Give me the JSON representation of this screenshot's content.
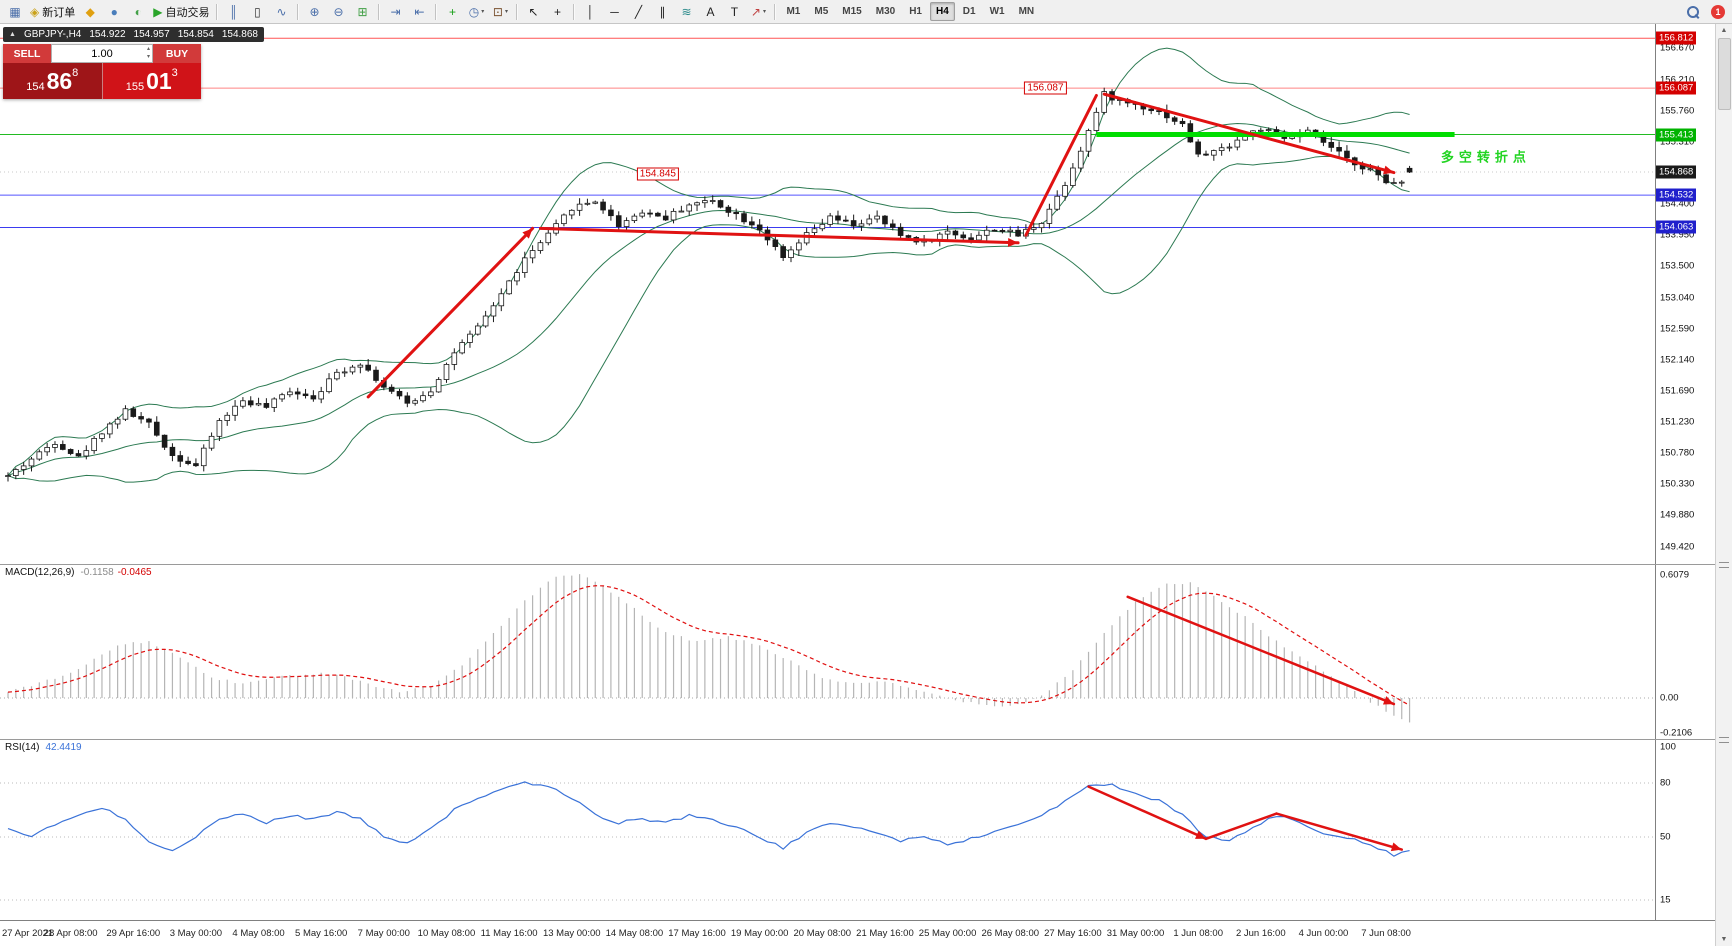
{
  "toolbar": {
    "notification_count": "1",
    "groups": [
      {
        "items": [
          {
            "name": "new-chart-button",
            "glyph": "▦",
            "color": "#4a6ea9"
          },
          {
            "name": "new-order-button",
            "glyph": "◈",
            "color": "#caa21a",
            "label": "新订单"
          },
          {
            "name": "charts-button",
            "glyph": "◆",
            "color": "#e0a010"
          },
          {
            "name": "market-watch-button",
            "glyph": "●",
            "color": "#4a7ebb"
          },
          {
            "name": "navigator-button",
            "glyph": "◐",
            "color": "#43a047"
          },
          {
            "name": "autotrading-button",
            "glyph": "▶",
            "color": "#2aa52a",
            "label": "自动交易"
          }
        ]
      },
      {
        "items": [
          {
            "name": "bar-chart-button",
            "glyph": "║",
            "color": "#4a6ea9"
          },
          {
            "name": "candlestick-chart-button",
            "glyph": "▯",
            "color": "#333333"
          },
          {
            "name": "line-chart-button",
            "glyph": "∿",
            "color": "#4a6ea9"
          }
        ]
      },
      {
        "items": [
          {
            "name": "zoom-in-button",
            "glyph": "⊕",
            "color": "#4a6ea9"
          },
          {
            "name": "zoom-out-button",
            "glyph": "⊖",
            "color": "#4a6ea9"
          },
          {
            "name": "tile-windows-button",
            "glyph": "⊞",
            "color": "#43a047"
          }
        ]
      },
      {
        "items": [
          {
            "name": "auto-scroll-button",
            "glyph": "⇥",
            "color": "#4a6ea9"
          },
          {
            "name": "chart-shift-button",
            "glyph": "⇤",
            "color": "#4a6ea9"
          }
        ]
      },
      {
        "items": [
          {
            "name": "add-indicator-button",
            "glyph": "+",
            "color": "#18a018"
          },
          {
            "name": "periods-button",
            "glyph": "◷",
            "color": "#4a6ea9",
            "dropdown": true
          },
          {
            "name": "template-button",
            "glyph": "⊡",
            "color": "#7a5230",
            "dropdown": true
          }
        ]
      },
      {
        "items": [
          {
            "name": "cursor-button",
            "glyph": "↖",
            "color": "#222222"
          },
          {
            "name": "crosshair-button",
            "glyph": "+",
            "color": "#222222"
          }
        ]
      },
      {
        "items": [
          {
            "name": "vertical-line-button",
            "glyph": "│",
            "color": "#222222"
          },
          {
            "name": "horizontal-line-button",
            "glyph": "─",
            "color": "#222222"
          },
          {
            "name": "trendline-button",
            "glyph": "╱",
            "color": "#222222"
          },
          {
            "name": "channel-button",
            "glyph": "∥",
            "color": "#222222"
          },
          {
            "name": "fibonacci-button",
            "glyph": "≋",
            "color": "#2a8a8a"
          },
          {
            "name": "text-button",
            "glyph": "A",
            "color": "#222222"
          },
          {
            "name": "label-button",
            "glyph": "T",
            "color": "#222222"
          },
          {
            "name": "arrows-button",
            "glyph": "↗",
            "color": "#c04040",
            "dropdown": true
          }
        ]
      }
    ],
    "timeframes": {
      "items": [
        "M1",
        "M5",
        "M15",
        "M30",
        "H1",
        "H4",
        "D1",
        "W1",
        "MN"
      ],
      "active": "H4"
    }
  },
  "quote_bar": {
    "symbol_period": "GBPJPY-,H4",
    "open": "154.922",
    "high": "154.957",
    "low": "154.854",
    "close": "154.868"
  },
  "trade_panel": {
    "sell_label": "SELL",
    "buy_label": "BUY",
    "volume_value": "1.00",
    "sell_price_prefix": "154",
    "sell_price_big": "86",
    "sell_price_sup": "8",
    "buy_price_prefix": "155",
    "buy_price_big": "01",
    "buy_price_sup": "3"
  },
  "macd_header": {
    "name": "MACD(12,26,9)",
    "value": "-0.1158",
    "signal": "-0.0465"
  },
  "rsi_header": {
    "name": "RSI(14)",
    "value": "42.4419"
  },
  "time_axis": {
    "step": 8,
    "labels": [
      "27 Apr 2021",
      "28 Apr 08:00",
      "29 Apr 16:00",
      "3 May 00:00",
      "4 May 08:00",
      "5 May 16:00",
      "7 May 00:00",
      "10 May 08:00",
      "11 May 16:00",
      "13 May 00:00",
      "14 May 08:00",
      "17 May 16:00",
      "19 May 00:00",
      "20 May 08:00",
      "21 May 16:00",
      "25 May 00:00",
      "26 May 08:00",
      "27 May 16:00",
      "31 May 00:00",
      "1 Jun 08:00",
      "2 Jun 16:00",
      "4 Jun 00:00",
      "7 Jun 08:00"
    ]
  },
  "chart_data": [
    {
      "type": "candlestick",
      "symbol": "GBPJPY-,H4",
      "n_candles": 180,
      "candle_up": "#ffffff",
      "candle_down": "#1a1a1a",
      "arrow_color": "#e01212",
      "last_ohlc": {
        "open": 154.922,
        "high": 154.957,
        "low": 154.854,
        "close": 154.868
      },
      "y_axis": {
        "ylim": [
          149.42,
          156.88
        ],
        "ticks": [
          "156.670",
          "156.210",
          "155.760",
          "155.310",
          "154.860",
          "154.400",
          "153.950",
          "153.500",
          "153.040",
          "152.590",
          "152.140",
          "151.690",
          "151.230",
          "150.780",
          "150.330",
          "149.880",
          "149.420"
        ]
      },
      "price_keypoints": [
        [
          0,
          150.45
        ],
        [
          3,
          150.7
        ],
        [
          6,
          150.95
        ],
        [
          9,
          150.72
        ],
        [
          12,
          151.1
        ],
        [
          15,
          151.4
        ],
        [
          18,
          151.2
        ],
        [
          21,
          150.75
        ],
        [
          24,
          150.6
        ],
        [
          27,
          151.25
        ],
        [
          30,
          151.55
        ],
        [
          33,
          151.45
        ],
        [
          36,
          151.7
        ],
        [
          39,
          151.6
        ],
        [
          42,
          151.95
        ],
        [
          45,
          152.1
        ],
        [
          48,
          151.75
        ],
        [
          51,
          151.5
        ],
        [
          54,
          151.7
        ],
        [
          57,
          152.25
        ],
        [
          60,
          152.6
        ],
        [
          63,
          153.1
        ],
        [
          66,
          153.6
        ],
        [
          69,
          153.95
        ],
        [
          72,
          154.35
        ],
        [
          75,
          154.45
        ],
        [
          78,
          154.1
        ],
        [
          81,
          154.3
        ],
        [
          84,
          154.2
        ],
        [
          87,
          154.4
        ],
        [
          90,
          154.45
        ],
        [
          93,
          154.25
        ],
        [
          96,
          154.05
        ],
        [
          99,
          153.6
        ],
        [
          102,
          153.95
        ],
        [
          105,
          154.2
        ],
        [
          108,
          154.1
        ],
        [
          111,
          154.2
        ],
        [
          114,
          153.95
        ],
        [
          117,
          153.85
        ],
        [
          120,
          154.0
        ],
        [
          123,
          153.9
        ],
        [
          126,
          154.05
        ],
        [
          129,
          153.95
        ],
        [
          132,
          154.15
        ],
        [
          135,
          154.7
        ],
        [
          137,
          155.2
        ],
        [
          140,
          156.0
        ],
        [
          142,
          155.9
        ],
        [
          144,
          155.85
        ],
        [
          147,
          155.75
        ],
        [
          150,
          155.55
        ],
        [
          152,
          155.1
        ],
        [
          155,
          155.2
        ],
        [
          158,
          155.4
        ],
        [
          160,
          155.5
        ],
        [
          163,
          155.35
        ],
        [
          166,
          155.45
        ],
        [
          168,
          155.3
        ],
        [
          171,
          155.05
        ],
        [
          174,
          154.9
        ],
        [
          176,
          154.7
        ],
        [
          178,
          154.75
        ],
        [
          179,
          154.868
        ]
      ],
      "bollinger": {
        "period": 20,
        "deviation": 2,
        "color": "#2c7a52"
      },
      "levels": [
        {
          "price": 156.812,
          "color": "#ff5555",
          "style": "solid",
          "width": 1,
          "badge": "156.812",
          "badge_color": "#d40000"
        },
        {
          "price": 156.087,
          "color": "#ff8585",
          "style": "solid",
          "width": 1,
          "badge": "156.087",
          "badge_color": "#d40000"
        },
        {
          "price": 155.413,
          "color": "#22bb22",
          "style": "solid",
          "width": 1,
          "badge": "155.413",
          "badge_color": "#00b300"
        },
        {
          "price": 154.868,
          "color": "#c8c8c8",
          "style": "dot",
          "width": 1,
          "badge": "154.868",
          "badge_color": "#1a1a1a"
        },
        {
          "price": 154.532,
          "color": "#5555ff",
          "style": "solid",
          "width": 1,
          "badge": "154.532",
          "badge_color": "#2020cc"
        },
        {
          "price": 154.063,
          "color": "#3b3bf0",
          "style": "solid",
          "width": 1,
          "badge": "154.063",
          "badge_color": "#2020cc"
        }
      ],
      "green_segment": {
        "price": 155.413,
        "from_index": 139,
        "to_x_offset": 45,
        "color": "#00dd00",
        "width": 5
      },
      "arrows": [
        {
          "from": [
            46,
            151.6
          ],
          "to": [
            67,
            154.05
          ],
          "head": true
        },
        {
          "from": [
            68,
            154.05
          ],
          "to": [
            129,
            153.84
          ],
          "head": true
        },
        {
          "from": [
            130,
            153.95
          ],
          "to": [
            139,
            155.98
          ],
          "head": false
        },
        {
          "from": [
            140,
            156.0
          ],
          "to": [
            177,
            154.86
          ],
          "head": true
        }
      ],
      "callouts": [
        {
          "text": "156.087",
          "index": 132.5,
          "price": 156.087
        },
        {
          "text": "154.845",
          "index": 83,
          "price": 154.845
        }
      ],
      "annotations": [
        {
          "text": "多空转折点",
          "index": 183,
          "price": 155.1,
          "color": "#21d421"
        }
      ]
    },
    {
      "type": "bar",
      "title": "MACD(12,26,9)",
      "current_value": -0.1158,
      "current_signal": -0.0465,
      "histogram_color": "#b5b5b5",
      "signal_color": "#e01010",
      "level_labels": [
        "0.6079",
        "0.00",
        "-0.2106"
      ],
      "level_values": [
        0.6079,
        0,
        -0.2106
      ],
      "values_keypoints": [
        [
          0,
          0.03
        ],
        [
          8,
          0.12
        ],
        [
          14,
          0.26
        ],
        [
          18,
          0.28
        ],
        [
          22,
          0.2
        ],
        [
          26,
          0.1
        ],
        [
          30,
          0.07
        ],
        [
          34,
          0.1
        ],
        [
          38,
          0.12
        ],
        [
          42,
          0.12
        ],
        [
          46,
          0.07
        ],
        [
          50,
          0.03
        ],
        [
          54,
          0.06
        ],
        [
          58,
          0.16
        ],
        [
          62,
          0.32
        ],
        [
          66,
          0.48
        ],
        [
          70,
          0.6
        ],
        [
          73,
          0.61
        ],
        [
          76,
          0.55
        ],
        [
          80,
          0.44
        ],
        [
          84,
          0.32
        ],
        [
          88,
          0.28
        ],
        [
          92,
          0.3
        ],
        [
          96,
          0.26
        ],
        [
          100,
          0.18
        ],
        [
          104,
          0.1
        ],
        [
          108,
          0.07
        ],
        [
          112,
          0.08
        ],
        [
          116,
          0.04
        ],
        [
          120,
          0.0
        ],
        [
          124,
          -0.03
        ],
        [
          128,
          -0.04
        ],
        [
          132,
          0.01
        ],
        [
          136,
          0.14
        ],
        [
          140,
          0.32
        ],
        [
          144,
          0.48
        ],
        [
          148,
          0.56
        ],
        [
          151,
          0.57
        ],
        [
          154,
          0.5
        ],
        [
          158,
          0.4
        ],
        [
          162,
          0.28
        ],
        [
          166,
          0.18
        ],
        [
          170,
          0.08
        ],
        [
          174,
          -0.02
        ],
        [
          177,
          -0.09
        ],
        [
          179,
          -0.12
        ]
      ],
      "arrow": {
        "from": [
          143,
          0.5
        ],
        "to": [
          177,
          -0.03
        ],
        "head": true
      }
    },
    {
      "type": "line",
      "title": "RSI(14)",
      "current_value": 42.4419,
      "line_color": "#3a72d8",
      "level_labels": [
        "100",
        "80",
        "50",
        "15"
      ],
      "level_values": [
        100,
        80,
        50,
        15
      ],
      "dotted_levels": [
        80,
        50,
        15
      ],
      "values_keypoints": [
        [
          0,
          55
        ],
        [
          3,
          50
        ],
        [
          6,
          57
        ],
        [
          9,
          62
        ],
        [
          12,
          66
        ],
        [
          15,
          60
        ],
        [
          18,
          48
        ],
        [
          21,
          42
        ],
        [
          24,
          50
        ],
        [
          27,
          60
        ],
        [
          30,
          63
        ],
        [
          33,
          58
        ],
        [
          36,
          62
        ],
        [
          39,
          60
        ],
        [
          42,
          64
        ],
        [
          45,
          60
        ],
        [
          48,
          50
        ],
        [
          51,
          47
        ],
        [
          54,
          55
        ],
        [
          57,
          65
        ],
        [
          60,
          72
        ],
        [
          63,
          76
        ],
        [
          66,
          80
        ],
        [
          69,
          78
        ],
        [
          72,
          72
        ],
        [
          75,
          62
        ],
        [
          78,
          58
        ],
        [
          81,
          60
        ],
        [
          84,
          58
        ],
        [
          87,
          62
        ],
        [
          90,
          60
        ],
        [
          93,
          55
        ],
        [
          96,
          50
        ],
        [
          99,
          44
        ],
        [
          102,
          52
        ],
        [
          105,
          58
        ],
        [
          108,
          56
        ],
        [
          111,
          52
        ],
        [
          114,
          48
        ],
        [
          117,
          50
        ],
        [
          120,
          46
        ],
        [
          123,
          49
        ],
        [
          126,
          53
        ],
        [
          129,
          57
        ],
        [
          132,
          62
        ],
        [
          135,
          70
        ],
        [
          138,
          78
        ],
        [
          141,
          79
        ],
        [
          144,
          74
        ],
        [
          147,
          70
        ],
        [
          150,
          62
        ],
        [
          153,
          50
        ],
        [
          156,
          48
        ],
        [
          159,
          55
        ],
        [
          162,
          62
        ],
        [
          165,
          58
        ],
        [
          168,
          52
        ],
        [
          171,
          50
        ],
        [
          174,
          46
        ],
        [
          177,
          40
        ],
        [
          179,
          42.4
        ]
      ],
      "arrows": [
        {
          "from": [
            138,
            78
          ],
          "to": [
            153,
            49
          ],
          "head": true
        },
        {
          "from": [
            153,
            49
          ],
          "to": [
            162,
            63
          ],
          "head": false
        },
        {
          "from": [
            162,
            63
          ],
          "to": [
            178,
            43
          ],
          "head": true
        }
      ]
    }
  ]
}
